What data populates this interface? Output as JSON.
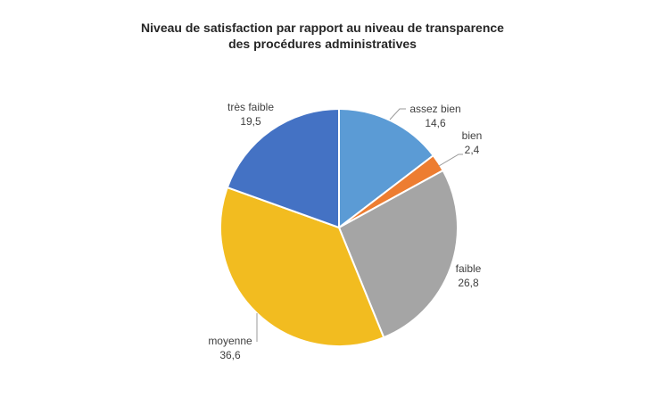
{
  "title": {
    "line1": "Niveau de satisfaction par rapport au niveau de transparence",
    "line2": "des procédures administratives"
  },
  "chart_data": {
    "type": "pie",
    "title": "Niveau de satisfaction par rapport au niveau de transparence des procédures administratives",
    "unit": "percent",
    "decimal_separator": "comma",
    "start_angle_deg": 0,
    "direction": "clockwise",
    "legend": "none",
    "label_style": "outside: category name above value",
    "slices": [
      {
        "label": "assez bien",
        "value": 14.6,
        "display": "14,6",
        "color": "#5B9BD5"
      },
      {
        "label": "bien",
        "value": 2.4,
        "display": "2,4",
        "color": "#ED7D31"
      },
      {
        "label": "faible",
        "value": 26.8,
        "display": "26,8",
        "color": "#A5A5A5"
      },
      {
        "label": "moyenne",
        "value": 36.6,
        "display": "36,6",
        "color": "#F2BC20"
      },
      {
        "label": "très faible",
        "value": 19.5,
        "display": "19,5",
        "color": "#4472C4"
      }
    ],
    "slice_border_color": "#ffffff",
    "leader_line_color": "#999999"
  }
}
